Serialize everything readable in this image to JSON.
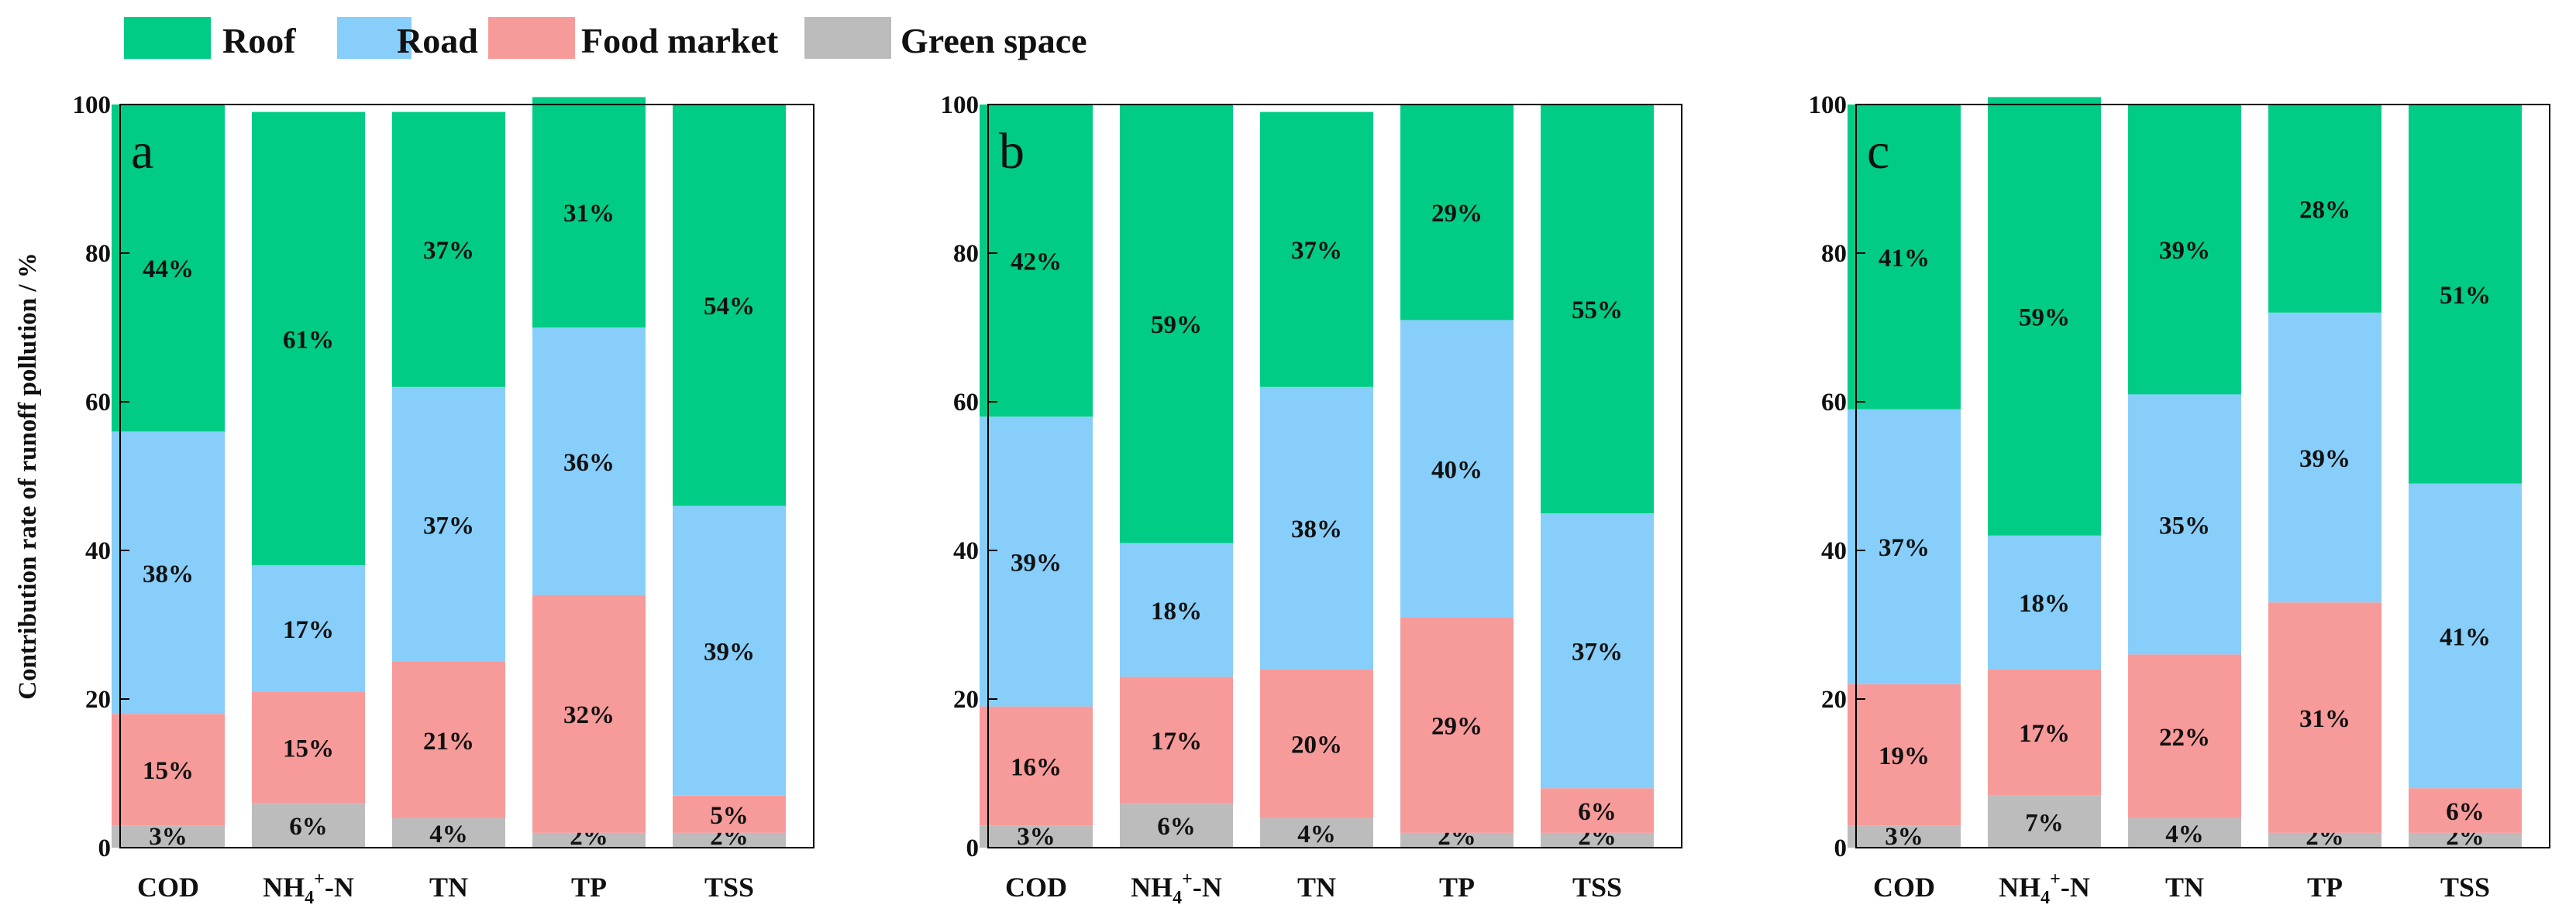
{
  "legend": [
    {
      "label": "Roof",
      "color": "#00cc85"
    },
    {
      "label": "Road",
      "color": "#87cefa"
    },
    {
      "label": "Food market",
      "color": "#f79a9a"
    },
    {
      "label": "Green space",
      "color": "#bcbcbc"
    }
  ],
  "chart_data": [
    {
      "type": "bar",
      "stacked": true,
      "panel_label": "a",
      "ylabel": "Contribution rate of runoff pollution / %",
      "ylim": [
        0,
        100
      ],
      "yticks": [
        "0",
        "20",
        "40",
        "60",
        "80",
        "100"
      ],
      "categories": [
        "COD",
        "NH4+-N",
        "TN",
        "TP",
        "TSS"
      ],
      "series": [
        {
          "name": "Green space",
          "color": "#bcbcbc",
          "values": [
            3,
            6,
            4,
            2,
            2
          ],
          "labels": [
            "3%",
            "6%",
            "4%",
            "2%",
            "2%"
          ]
        },
        {
          "name": "Food market",
          "color": "#f79a9a",
          "values": [
            15,
            15,
            21,
            32,
            5
          ],
          "labels": [
            "15%",
            "15%",
            "21%",
            "32%",
            "5%"
          ]
        },
        {
          "name": "Road",
          "color": "#87cefa",
          "values": [
            38,
            17,
            37,
            36,
            39
          ],
          "labels": [
            "38%",
            "17%",
            "37%",
            "36%",
            "39%"
          ]
        },
        {
          "name": "Roof",
          "color": "#00cc85",
          "values": [
            44,
            61,
            37,
            31,
            54
          ],
          "labels": [
            "44%",
            "61%",
            "37%",
            "31%",
            "54%"
          ]
        }
      ]
    },
    {
      "type": "bar",
      "stacked": true,
      "panel_label": "b",
      "ylabel": "",
      "ylim": [
        0,
        100
      ],
      "yticks": [
        "0",
        "20",
        "40",
        "60",
        "80",
        "100"
      ],
      "categories": [
        "COD",
        "NH4+-N",
        "TN",
        "TP",
        "TSS"
      ],
      "series": [
        {
          "name": "Green space",
          "color": "#bcbcbc",
          "values": [
            3,
            6,
            4,
            2,
            2
          ],
          "labels": [
            "3%",
            "6%",
            "4%",
            "2%",
            "2%"
          ]
        },
        {
          "name": "Food market",
          "color": "#f79a9a",
          "values": [
            16,
            17,
            20,
            29,
            6
          ],
          "labels": [
            "16%",
            "17%",
            "20%",
            "29%",
            "6%"
          ]
        },
        {
          "name": "Road",
          "color": "#87cefa",
          "values": [
            39,
            18,
            38,
            40,
            37
          ],
          "labels": [
            "39%",
            "18%",
            "38%",
            "40%",
            "37%"
          ]
        },
        {
          "name": "Roof",
          "color": "#00cc85",
          "values": [
            42,
            59,
            37,
            29,
            55
          ],
          "labels": [
            "42%",
            "59%",
            "37%",
            "29%",
            "55%"
          ]
        }
      ]
    },
    {
      "type": "bar",
      "stacked": true,
      "panel_label": "c",
      "ylabel": "",
      "ylim": [
        0,
        100
      ],
      "yticks": [
        "0",
        "20",
        "40",
        "60",
        "80",
        "100"
      ],
      "categories": [
        "COD",
        "NH4+-N",
        "TN",
        "TP",
        "TSS"
      ],
      "series": [
        {
          "name": "Green space",
          "color": "#bcbcbc",
          "values": [
            3,
            7,
            4,
            2,
            2
          ],
          "labels": [
            "3%",
            "7%",
            "4%",
            "2%",
            "2%"
          ]
        },
        {
          "name": "Food market",
          "color": "#f79a9a",
          "values": [
            19,
            17,
            22,
            31,
            6
          ],
          "labels": [
            "19%",
            "17%",
            "22%",
            "31%",
            "6%"
          ]
        },
        {
          "name": "Road",
          "color": "#87cefa",
          "values": [
            37,
            18,
            35,
            39,
            41
          ],
          "labels": [
            "37%",
            "18%",
            "35%",
            "39%",
            "41%"
          ]
        },
        {
          "name": "Roof",
          "color": "#00cc85",
          "values": [
            41,
            59,
            39,
            28,
            51
          ],
          "labels": [
            "41%",
            "59%",
            "39%",
            "28%",
            "51%"
          ]
        }
      ]
    }
  ]
}
